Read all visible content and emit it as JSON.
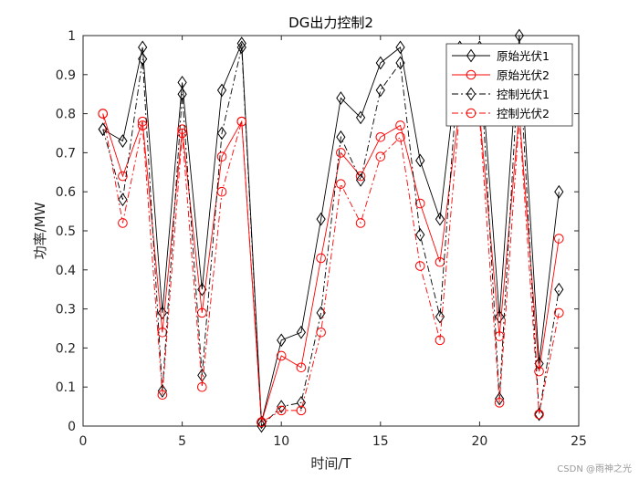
{
  "chart_data": {
    "type": "line",
    "title": "DG出力控制2",
    "xlabel": "时间/T",
    "ylabel": "功率/MW",
    "xlim": [
      0,
      25
    ],
    "ylim": [
      0,
      1
    ],
    "xticks": [
      0,
      5,
      10,
      15,
      20,
      25
    ],
    "yticks": [
      0,
      0.1,
      0.2,
      0.3,
      0.4,
      0.5,
      0.6,
      0.7,
      0.8,
      0.9,
      1
    ],
    "x": [
      1,
      2,
      3,
      4,
      5,
      6,
      7,
      8,
      9,
      10,
      11,
      12,
      13,
      14,
      15,
      16,
      17,
      18,
      19,
      20,
      21,
      22,
      23,
      24
    ],
    "series": [
      {
        "name": "原始光伏1",
        "color": "#000000",
        "linestyle": "solid",
        "marker": "diamond",
        "values": [
          0.76,
          0.73,
          0.97,
          0.29,
          0.88,
          0.35,
          0.86,
          0.98,
          0.01,
          0.22,
          0.24,
          0.53,
          0.84,
          0.79,
          0.93,
          0.97,
          0.68,
          0.53,
          0.97,
          0.97,
          0.28,
          1.0,
          0.16,
          0.6
        ]
      },
      {
        "name": "原始光伏2",
        "color": "#ff0000",
        "linestyle": "solid",
        "marker": "circle",
        "values": [
          0.8,
          0.64,
          0.78,
          0.24,
          0.76,
          0.29,
          0.69,
          0.78,
          0.01,
          0.18,
          0.15,
          0.43,
          0.7,
          0.64,
          0.74,
          0.77,
          0.57,
          0.42,
          0.82,
          0.8,
          0.23,
          0.8,
          0.14,
          0.48
        ]
      },
      {
        "name": "控制光伏1",
        "color": "#000000",
        "linestyle": "dashdot",
        "marker": "diamond",
        "values": [
          0.76,
          0.58,
          0.94,
          0.09,
          0.85,
          0.13,
          0.75,
          0.97,
          0.0,
          0.05,
          0.06,
          0.29,
          0.74,
          0.63,
          0.86,
          0.93,
          0.49,
          0.28,
          0.96,
          0.96,
          0.07,
          0.95,
          0.03,
          0.35
        ]
      },
      {
        "name": "控制光伏2",
        "color": "#ff0000",
        "linestyle": "dashdot",
        "marker": "circle",
        "values": [
          0.8,
          0.52,
          0.77,
          0.08,
          0.75,
          0.1,
          0.6,
          0.78,
          0.01,
          0.04,
          0.04,
          0.24,
          0.62,
          0.52,
          0.69,
          0.74,
          0.41,
          0.22,
          0.81,
          0.79,
          0.06,
          0.79,
          0.03,
          0.29
        ]
      }
    ],
    "legend": "top-right"
  },
  "watermark": "CSDN @雨神之光"
}
